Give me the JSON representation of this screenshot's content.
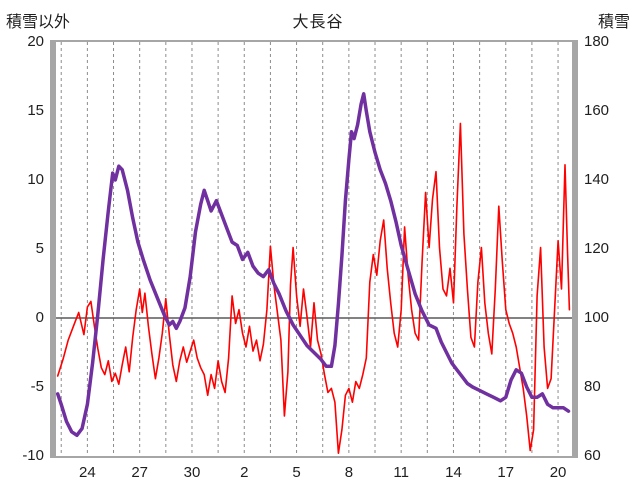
{
  "chart_data": {
    "type": "line",
    "title": "大長谷",
    "left_axis": {
      "label": "積雪以外",
      "min": -10,
      "max": 20,
      "ticks": [
        20,
        15,
        10,
        5,
        0,
        -5,
        -10
      ]
    },
    "right_axis": {
      "label": "積雪",
      "min": 60,
      "max": 180,
      "ticks": [
        180,
        160,
        140,
        120,
        100,
        80,
        60
      ]
    },
    "x_axis": {
      "min": 22.2,
      "max": 51.8,
      "gridline_step": 1.5,
      "tick_positions": [
        24,
        27,
        30,
        33,
        36,
        39,
        42,
        45,
        48,
        51
      ],
      "tick_labels": [
        "24",
        "27",
        "30",
        "2",
        "5",
        "8",
        "11",
        "14",
        "17",
        "20"
      ]
    },
    "zero_line_value": 0,
    "grid": {
      "vertical_dashed": true,
      "horizontal": false
    },
    "legend_position": "none",
    "series": [
      {
        "name": "積雪以外",
        "key": "other-than-snow-line",
        "axis": "left",
        "color": "#ff0000",
        "width": 1.6,
        "points": [
          [
            22.3,
            -4.2
          ],
          [
            22.6,
            -3.0
          ],
          [
            22.9,
            -1.6
          ],
          [
            23.2,
            -0.6
          ],
          [
            23.5,
            0.4
          ],
          [
            23.8,
            -1.2
          ],
          [
            24.0,
            0.8
          ],
          [
            24.2,
            1.2
          ],
          [
            24.4,
            -0.6
          ],
          [
            24.6,
            -2.2
          ],
          [
            24.8,
            -3.6
          ],
          [
            25.0,
            -4.1
          ],
          [
            25.2,
            -3.1
          ],
          [
            25.4,
            -4.6
          ],
          [
            25.6,
            -4.0
          ],
          [
            25.8,
            -4.8
          ],
          [
            26.0,
            -3.4
          ],
          [
            26.2,
            -2.1
          ],
          [
            26.4,
            -3.9
          ],
          [
            26.6,
            -1.4
          ],
          [
            26.8,
            0.6
          ],
          [
            27.0,
            2.1
          ],
          [
            27.15,
            0.4
          ],
          [
            27.3,
            1.8
          ],
          [
            27.5,
            -0.6
          ],
          [
            27.7,
            -2.6
          ],
          [
            27.9,
            -4.4
          ],
          [
            28.1,
            -2.9
          ],
          [
            28.3,
            -1.1
          ],
          [
            28.5,
            1.4
          ],
          [
            28.7,
            -1.2
          ],
          [
            28.9,
            -3.4
          ],
          [
            29.1,
            -4.6
          ],
          [
            29.3,
            -3.1
          ],
          [
            29.5,
            -2.1
          ],
          [
            29.7,
            -3.2
          ],
          [
            29.9,
            -2.4
          ],
          [
            30.1,
            -1.6
          ],
          [
            30.3,
            -2.9
          ],
          [
            30.5,
            -3.6
          ],
          [
            30.7,
            -4.1
          ],
          [
            30.9,
            -5.6
          ],
          [
            31.1,
            -4.1
          ],
          [
            31.3,
            -5.1
          ],
          [
            31.5,
            -3.1
          ],
          [
            31.7,
            -4.6
          ],
          [
            31.9,
            -5.4
          ],
          [
            32.1,
            -2.9
          ],
          [
            32.3,
            1.6
          ],
          [
            32.5,
            -0.4
          ],
          [
            32.7,
            0.6
          ],
          [
            32.9,
            -1.1
          ],
          [
            33.1,
            -2.1
          ],
          [
            33.3,
            -0.6
          ],
          [
            33.5,
            -2.4
          ],
          [
            33.7,
            -1.6
          ],
          [
            33.9,
            -3.1
          ],
          [
            34.1,
            -1.9
          ],
          [
            34.3,
            0.6
          ],
          [
            34.5,
            5.2
          ],
          [
            34.7,
            2.4
          ],
          [
            34.9,
            0.4
          ],
          [
            35.1,
            -1.6
          ],
          [
            35.3,
            -7.1
          ],
          [
            35.5,
            -3.9
          ],
          [
            35.65,
            2.4
          ],
          [
            35.8,
            5.1
          ],
          [
            36.0,
            1.6
          ],
          [
            36.2,
            -0.6
          ],
          [
            36.4,
            2.1
          ],
          [
            36.6,
            0.1
          ],
          [
            36.8,
            -2.1
          ],
          [
            37.0,
            1.1
          ],
          [
            37.2,
            -1.6
          ],
          [
            37.4,
            -2.6
          ],
          [
            37.6,
            -4.1
          ],
          [
            37.8,
            -5.4
          ],
          [
            38.0,
            -5.1
          ],
          [
            38.2,
            -6.1
          ],
          [
            38.4,
            -9.8
          ],
          [
            38.6,
            -8.1
          ],
          [
            38.8,
            -5.6
          ],
          [
            39.0,
            -5.1
          ],
          [
            39.2,
            -6.1
          ],
          [
            39.4,
            -4.6
          ],
          [
            39.6,
            -5.1
          ],
          [
            39.8,
            -4.1
          ],
          [
            40.0,
            -2.9
          ],
          [
            40.2,
            2.6
          ],
          [
            40.4,
            4.6
          ],
          [
            40.6,
            3.1
          ],
          [
            40.8,
            5.6
          ],
          [
            41.0,
            7.1
          ],
          [
            41.2,
            3.6
          ],
          [
            41.4,
            1.1
          ],
          [
            41.6,
            -1.1
          ],
          [
            41.8,
            -2.1
          ],
          [
            42.0,
            0.6
          ],
          [
            42.2,
            6.6
          ],
          [
            42.4,
            3.1
          ],
          [
            42.6,
            0.6
          ],
          [
            42.8,
            -1.1
          ],
          [
            43.0,
            -1.6
          ],
          [
            43.2,
            4.1
          ],
          [
            43.4,
            9.1
          ],
          [
            43.6,
            5.1
          ],
          [
            43.8,
            8.6
          ],
          [
            44.0,
            10.6
          ],
          [
            44.2,
            5.1
          ],
          [
            44.4,
            2.1
          ],
          [
            44.6,
            1.6
          ],
          [
            44.8,
            3.6
          ],
          [
            45.0,
            1.1
          ],
          [
            45.2,
            8.1
          ],
          [
            45.4,
            14.1
          ],
          [
            45.6,
            6.1
          ],
          [
            45.8,
            2.1
          ],
          [
            46.0,
            -1.4
          ],
          [
            46.2,
            -2.1
          ],
          [
            46.4,
            2.6
          ],
          [
            46.6,
            5.1
          ],
          [
            46.8,
            1.1
          ],
          [
            47.0,
            -1.1
          ],
          [
            47.2,
            -2.6
          ],
          [
            47.4,
            2.1
          ],
          [
            47.6,
            8.1
          ],
          [
            47.8,
            4.1
          ],
          [
            48.0,
            0.6
          ],
          [
            48.2,
            -0.4
          ],
          [
            48.4,
            -1.1
          ],
          [
            48.6,
            -2.1
          ],
          [
            48.8,
            -3.6
          ],
          [
            49.0,
            -5.1
          ],
          [
            49.2,
            -7.1
          ],
          [
            49.4,
            -9.6
          ],
          [
            49.6,
            -8.1
          ],
          [
            49.8,
            1.6
          ],
          [
            50.0,
            5.1
          ],
          [
            50.2,
            -2.1
          ],
          [
            50.4,
            -5.1
          ],
          [
            50.6,
            -4.4
          ],
          [
            50.8,
            0.6
          ],
          [
            51.0,
            5.6
          ],
          [
            51.2,
            2.1
          ],
          [
            51.4,
            11.1
          ],
          [
            51.55,
            4.6
          ],
          [
            51.65,
            0.6
          ]
        ]
      },
      {
        "name": "積雪",
        "key": "snow-depth-line",
        "axis": "right",
        "color": "#7030a0",
        "width": 3.5,
        "points": [
          [
            22.3,
            78
          ],
          [
            22.5,
            75
          ],
          [
            22.8,
            70
          ],
          [
            23.1,
            67
          ],
          [
            23.4,
            66
          ],
          [
            23.7,
            68
          ],
          [
            24.0,
            75
          ],
          [
            24.3,
            87
          ],
          [
            24.6,
            101
          ],
          [
            24.9,
            117
          ],
          [
            25.2,
            131
          ],
          [
            25.45,
            142
          ],
          [
            25.6,
            140
          ],
          [
            25.8,
            144
          ],
          [
            26.0,
            143
          ],
          [
            26.3,
            137
          ],
          [
            26.6,
            129
          ],
          [
            26.9,
            122
          ],
          [
            27.2,
            117
          ],
          [
            27.6,
            111
          ],
          [
            28.0,
            106
          ],
          [
            28.4,
            101
          ],
          [
            28.7,
            98
          ],
          [
            28.9,
            99
          ],
          [
            29.1,
            97
          ],
          [
            29.3,
            99
          ],
          [
            29.6,
            103
          ],
          [
            29.9,
            112
          ],
          [
            30.2,
            125
          ],
          [
            30.5,
            133
          ],
          [
            30.7,
            137
          ],
          [
            30.9,
            134
          ],
          [
            31.1,
            131
          ],
          [
            31.4,
            134
          ],
          [
            31.7,
            130
          ],
          [
            32.0,
            126
          ],
          [
            32.3,
            122
          ],
          [
            32.6,
            121
          ],
          [
            32.9,
            117
          ],
          [
            33.2,
            119
          ],
          [
            33.5,
            115
          ],
          [
            33.8,
            113
          ],
          [
            34.1,
            112
          ],
          [
            34.4,
            114
          ],
          [
            34.7,
            110
          ],
          [
            35.0,
            107
          ],
          [
            35.4,
            102
          ],
          [
            35.8,
            98
          ],
          [
            36.2,
            95
          ],
          [
            36.6,
            92
          ],
          [
            37.0,
            90
          ],
          [
            37.4,
            88
          ],
          [
            37.7,
            86
          ],
          [
            38.0,
            86
          ],
          [
            38.2,
            92
          ],
          [
            38.4,
            104
          ],
          [
            38.6,
            118
          ],
          [
            38.8,
            134
          ],
          [
            39.0,
            146
          ],
          [
            39.15,
            154
          ],
          [
            39.3,
            152
          ],
          [
            39.5,
            156
          ],
          [
            39.7,
            162
          ],
          [
            39.85,
            165
          ],
          [
            40.0,
            160
          ],
          [
            40.2,
            154
          ],
          [
            40.5,
            148
          ],
          [
            40.8,
            143
          ],
          [
            41.1,
            139
          ],
          [
            41.4,
            134
          ],
          [
            41.7,
            128
          ],
          [
            42.0,
            121
          ],
          [
            42.4,
            114
          ],
          [
            42.8,
            107
          ],
          [
            43.2,
            102
          ],
          [
            43.6,
            98
          ],
          [
            44.0,
            97
          ],
          [
            44.3,
            93
          ],
          [
            44.6,
            90
          ],
          [
            44.9,
            87
          ],
          [
            45.2,
            85
          ],
          [
            45.5,
            83
          ],
          [
            45.8,
            81
          ],
          [
            46.1,
            80
          ],
          [
            46.5,
            79
          ],
          [
            46.9,
            78
          ],
          [
            47.3,
            77
          ],
          [
            47.7,
            76
          ],
          [
            48.0,
            77
          ],
          [
            48.3,
            82
          ],
          [
            48.6,
            85
          ],
          [
            48.9,
            84
          ],
          [
            49.2,
            80
          ],
          [
            49.5,
            77
          ],
          [
            49.8,
            77
          ],
          [
            50.1,
            78
          ],
          [
            50.4,
            75
          ],
          [
            50.7,
            74
          ],
          [
            51.0,
            74
          ],
          [
            51.3,
            74
          ],
          [
            51.6,
            73
          ]
        ]
      }
    ]
  }
}
